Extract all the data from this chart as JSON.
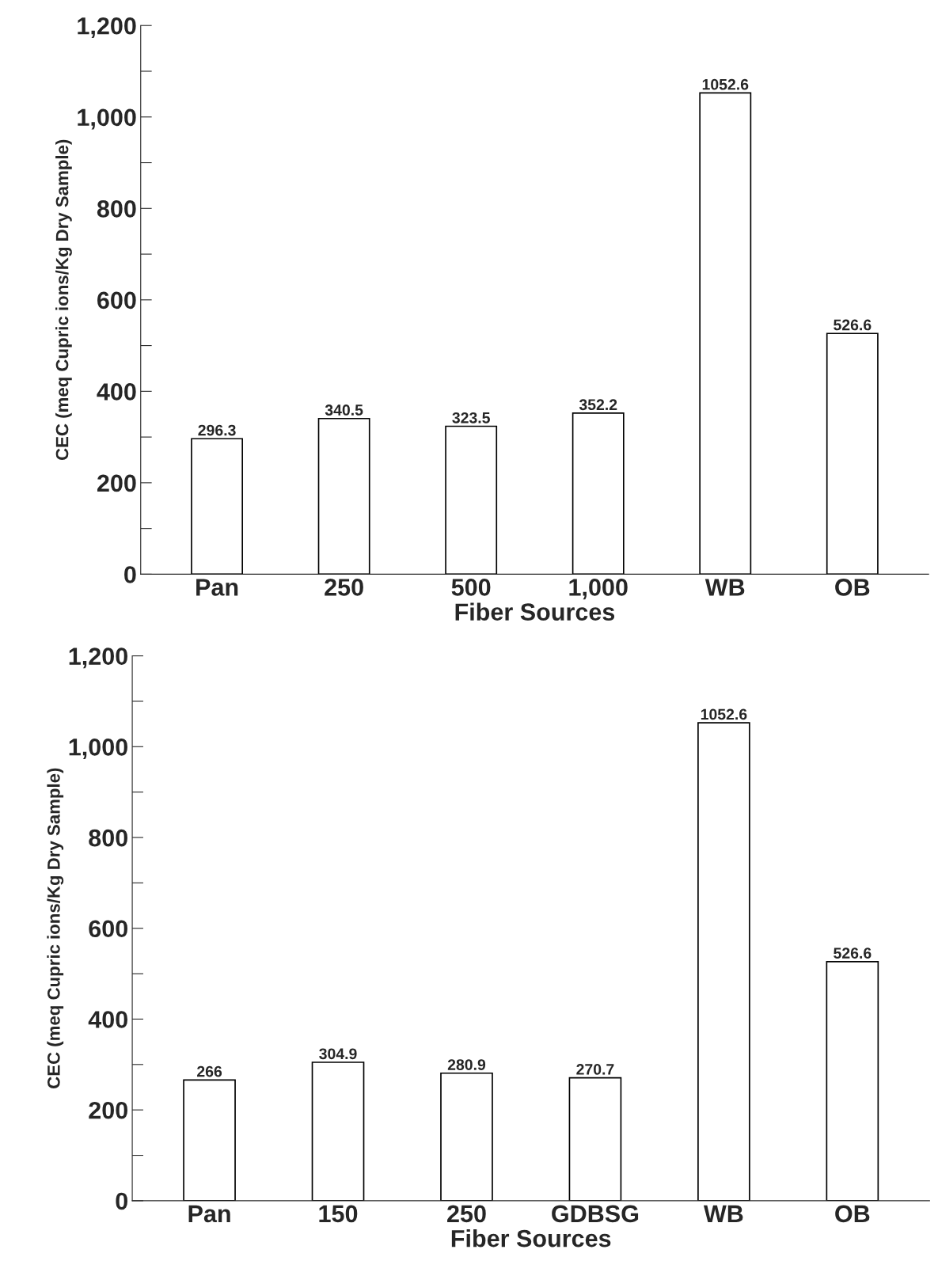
{
  "chart_data": [
    {
      "type": "bar",
      "xlabel": "Fiber Sources",
      "ylabel": "CEC (meq Cupric ions/Kg Dry Sample)",
      "categories": [
        "Pan",
        "250",
        "500",
        "1,000",
        "WB",
        "OB"
      ],
      "values": [
        296.3,
        340.5,
        323.5,
        352.2,
        1052.6,
        526.6
      ],
      "color": "#ffffff",
      "data_labels": true,
      "ylim": [
        0,
        1200
      ],
      "yticks": [
        0,
        {
          "value": 100,
          "label": null
        },
        200,
        {
          "value": 300,
          "label": null
        },
        400,
        {
          "value": 500,
          "label": null
        },
        600,
        {
          "value": 700,
          "label": null
        },
        800,
        {
          "value": 900,
          "label": null
        },
        {
          "value": 1000,
          "label": "1,000"
        },
        {
          "value": 1100,
          "label": null
        },
        {
          "value": 1200,
          "label": "1,200"
        }
      ],
      "grid": false,
      "legend": false
    },
    {
      "type": "bar",
      "xlabel": "Fiber Sources",
      "ylabel": "CEC (meq Cupric ions/Kg Dry Sample)",
      "categories": [
        "Pan",
        "150",
        "250",
        "GDBSG",
        "WB",
        "OB"
      ],
      "values": [
        266,
        304.9,
        280.9,
        270.7,
        1052.6,
        526.6
      ],
      "color": "#ffffff",
      "data_labels": true,
      "ylim": [
        0,
        1200
      ],
      "yticks": [
        0,
        {
          "value": 100,
          "label": null
        },
        200,
        {
          "value": 300,
          "label": null
        },
        400,
        {
          "value": 500,
          "label": null
        },
        600,
        {
          "value": 700,
          "label": null
        },
        800,
        {
          "value": 900,
          "label": null
        },
        {
          "value": 1000,
          "label": "1,000"
        },
        {
          "value": 1100,
          "label": null
        },
        {
          "value": 1200,
          "label": "1,200"
        }
      ],
      "grid": false,
      "legend": false
    }
  ]
}
